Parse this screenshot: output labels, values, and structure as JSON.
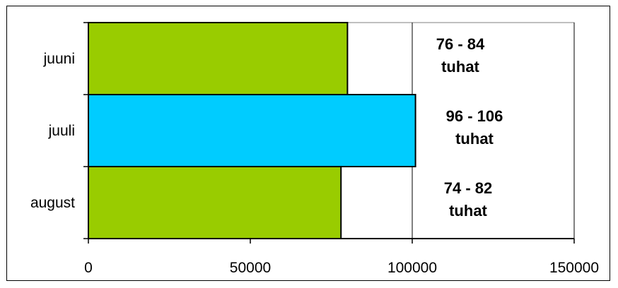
{
  "chart_data": {
    "type": "bar",
    "orientation": "horizontal",
    "title": "",
    "xlabel": "",
    "ylabel": "",
    "categories": [
      "juuni",
      "juuli",
      "august"
    ],
    "values": [
      80000,
      101000,
      78000
    ],
    "colors": [
      "#99cc00",
      "#00ccff",
      "#99cc00"
    ],
    "data_labels": [
      [
        "76 - 84",
        "tuhat"
      ],
      [
        "96 - 106",
        "tuhat"
      ],
      [
        "74 - 82",
        "tuhat"
      ]
    ],
    "xlim": [
      0,
      150000
    ],
    "x_ticks": [
      0,
      50000,
      100000,
      150000
    ],
    "x_tick_labels": [
      "0",
      "50000",
      "100000",
      "150000"
    ],
    "grid": "vertical",
    "legend": "none"
  }
}
